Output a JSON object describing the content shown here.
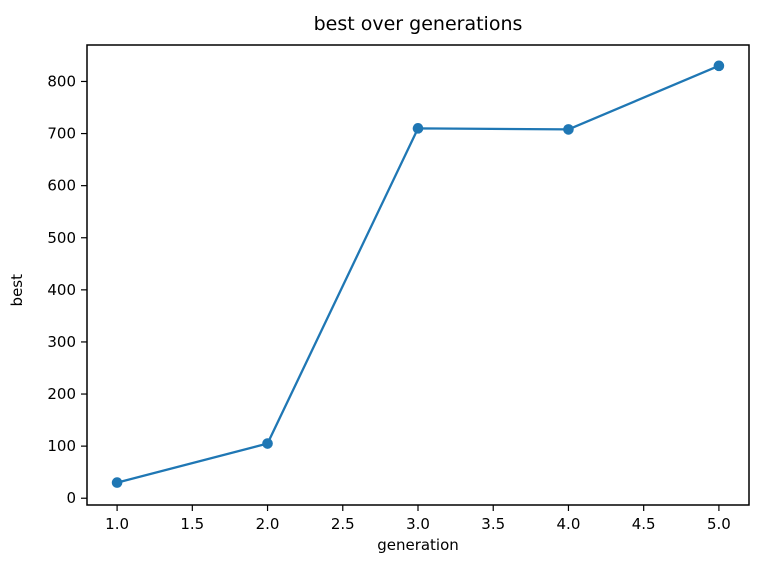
{
  "page": {
    "background": "#ffffff",
    "text_color": "#000000"
  },
  "chart_data": {
    "type": "line",
    "title": "best over generations",
    "xlabel": "generation",
    "ylabel": "best",
    "x": [
      1,
      2,
      3,
      4,
      5
    ],
    "series": [
      {
        "name": "best",
        "values": [
          30,
          105,
          710,
          708,
          830
        ]
      }
    ],
    "xlim": [
      0.8,
      5.2
    ],
    "ylim": [
      -13,
      870
    ],
    "xticks": [
      {
        "v": 1.0,
        "label": "1.0"
      },
      {
        "v": 1.5,
        "label": "1.5"
      },
      {
        "v": 2.0,
        "label": "2.0"
      },
      {
        "v": 2.5,
        "label": "2.5"
      },
      {
        "v": 3.0,
        "label": "3.0"
      },
      {
        "v": 3.5,
        "label": "3.5"
      },
      {
        "v": 4.0,
        "label": "4.0"
      },
      {
        "v": 4.5,
        "label": "4.5"
      },
      {
        "v": 5.0,
        "label": "5.0"
      }
    ],
    "yticks": [
      {
        "v": 0,
        "label": "0"
      },
      {
        "v": 100,
        "label": "100"
      },
      {
        "v": 200,
        "label": "200"
      },
      {
        "v": 300,
        "label": "300"
      },
      {
        "v": 400,
        "label": "400"
      },
      {
        "v": 500,
        "label": "500"
      },
      {
        "v": 600,
        "label": "600"
      },
      {
        "v": 700,
        "label": "700"
      },
      {
        "v": 800,
        "label": "800"
      }
    ],
    "grid": false,
    "legend_position": "none",
    "line_color": "#1f77b4",
    "marker": "o",
    "axis_color": "#000000"
  }
}
